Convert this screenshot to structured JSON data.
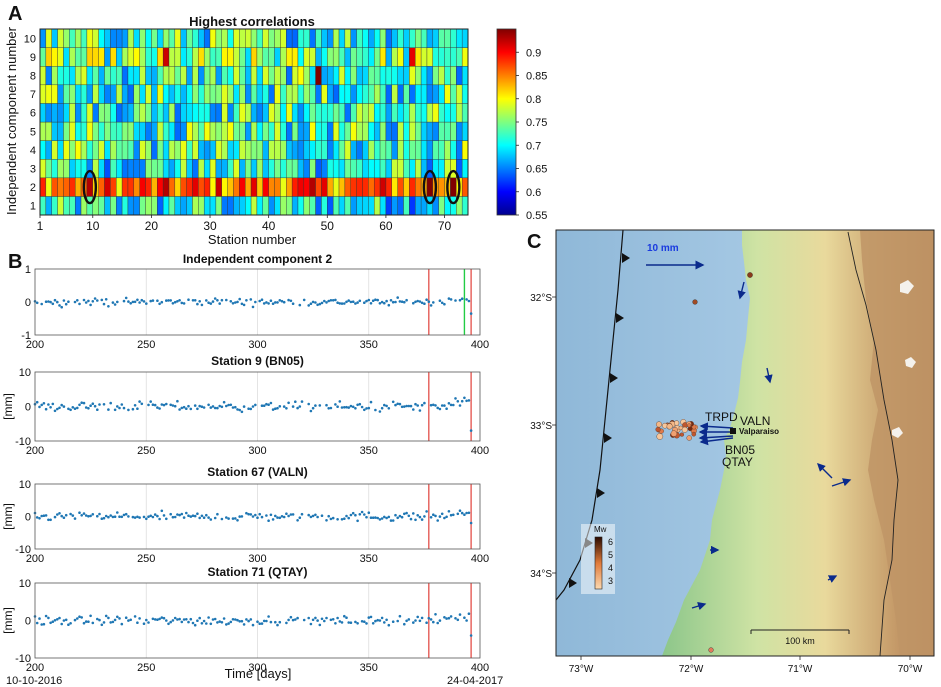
{
  "panel_labels": {
    "a": "A",
    "b": "B",
    "c": "C"
  },
  "chart_data": [
    {
      "type": "heatmap",
      "title": "Highest correlations",
      "xlabel": "Station number",
      "ylabel": "Independent component number",
      "x_ticks": [
        1,
        10,
        20,
        30,
        40,
        50,
        60,
        70
      ],
      "y_ticks": [
        1,
        2,
        3,
        4,
        5,
        6,
        7,
        8,
        9,
        10
      ],
      "xlim": [
        1,
        73
      ],
      "ylim": [
        1,
        10
      ],
      "rows": 10,
      "columns": 73,
      "value_range": [
        0.55,
        0.95
      ],
      "colorbar_ticks": [
        0.55,
        0.6,
        0.65,
        0.7,
        0.75,
        0.8,
        0.85,
        0.9
      ],
      "highlighted_row": 2,
      "highlighted_stations": [
        9,
        67,
        71
      ],
      "row_means": {
        "1": 0.7,
        "2": 0.86,
        "3": 0.71,
        "4": 0.72,
        "5": 0.72,
        "6": 0.72,
        "7": 0.72,
        "8": 0.72,
        "9": 0.74,
        "10": 0.72
      },
      "notable_cells": [
        {
          "station": 48,
          "component": 8,
          "value": 0.95
        },
        {
          "station": 22,
          "component": 9,
          "value": 0.92
        },
        {
          "station": 64,
          "component": 9,
          "value": 0.91
        },
        {
          "station": 9,
          "component": 2,
          "value": 0.93
        },
        {
          "station": 67,
          "component": 2,
          "value": 0.95
        },
        {
          "station": 71,
          "component": 2,
          "value": 0.95
        }
      ]
    },
    {
      "type": "scatter",
      "title": "Independent component 2",
      "xlim": [
        200,
        400
      ],
      "ylim": [
        -1,
        1
      ],
      "x_ticks": [
        200,
        250,
        300,
        350,
        400
      ],
      "y_ticks": [
        -1,
        0,
        1
      ],
      "ylabel": "",
      "red_line_day": 377,
      "green_line_day": 393,
      "second_red_line_day": 396,
      "noise_amplitude": 0.12,
      "final_value": -0.35
    },
    {
      "type": "scatter",
      "title": "Station 9 (BN05)",
      "xlim": [
        200,
        400
      ],
      "ylim": [
        -10,
        10
      ],
      "x_ticks": [
        200,
        250,
        300,
        350,
        400
      ],
      "y_ticks": [
        -10,
        0,
        10
      ],
      "ylabel": "[mm]",
      "red_line_day": 377,
      "second_red_line_day": 396,
      "noise_amplitude": 1.6,
      "final_value": -7
    },
    {
      "type": "scatter",
      "title": "Station 67 (VALN)",
      "xlim": [
        200,
        400
      ],
      "ylim": [
        -10,
        10
      ],
      "x_ticks": [
        200,
        250,
        300,
        350,
        400
      ],
      "y_ticks": [
        -10,
        0,
        10
      ],
      "ylabel": "[mm]",
      "red_line_day": 377,
      "second_red_line_day": 396,
      "noise_amplitude": 1.7,
      "final_value": -2
    },
    {
      "type": "scatter",
      "title": "Station 71 (QTAY)",
      "xlim": [
        200,
        400
      ],
      "ylim": [
        -10,
        10
      ],
      "x_ticks": [
        200,
        250,
        300,
        350,
        400
      ],
      "y_ticks": [
        -10,
        0,
        10
      ],
      "ylabel": "[mm]",
      "xlabel": "Time [days]",
      "red_line_day": 377,
      "second_red_line_day": 396,
      "noise_amplitude": 1.5,
      "final_value": -4
    }
  ],
  "date_labels": {
    "start": "10-10-2016",
    "end": "24-04-2017"
  },
  "map": {
    "lon_labels": [
      "73°W",
      "72°W",
      "71°W",
      "70°W"
    ],
    "lat_labels": [
      "32°S",
      "33°S",
      "34°S"
    ],
    "scale_arrow_label": "10 mm",
    "scale_bar_label": "100 km",
    "station_labels": [
      "TRPD",
      "VALN",
      "BN05",
      "QTAY"
    ],
    "city_label": "Valparaiso",
    "magnitude_legend": {
      "title": "Mw",
      "ticks": [
        "6",
        "5",
        "4",
        "3"
      ]
    },
    "colors": {
      "sea": "#a6cbe6",
      "land_low": "#8cc68a",
      "land_high": "#c69c6a",
      "arrow": "#0a2a8c"
    }
  }
}
